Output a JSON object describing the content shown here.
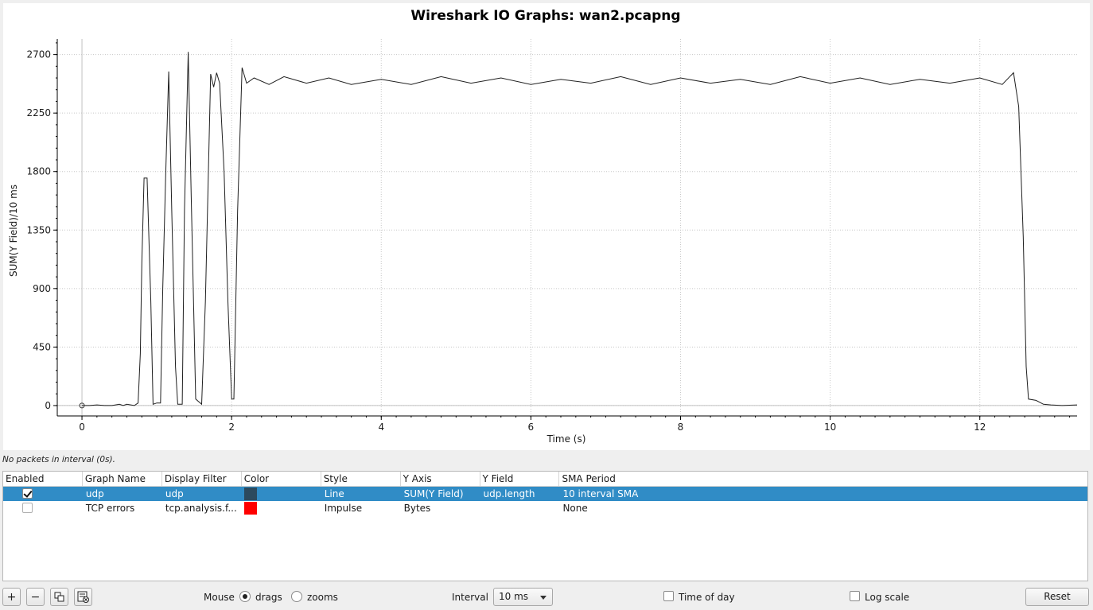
{
  "chart_data": {
    "type": "line",
    "title": "Wireshark IO Graphs: wan2.pcapng",
    "xlabel": "Time (s)",
    "ylabel": "SUM(Y Field)/10 ms",
    "xlim": [
      -0.33,
      13.3
    ],
    "ylim": [
      -80,
      2820
    ],
    "x_ticks": [
      0,
      2,
      4,
      6,
      8,
      10,
      12
    ],
    "y_ticks": [
      0,
      450,
      900,
      1350,
      1800,
      2250,
      2700
    ],
    "grid": true,
    "series": [
      {
        "name": "udp",
        "color": "#1f1f1f",
        "points": [
          [
            0.0,
            0
          ],
          [
            0.1,
            0
          ],
          [
            0.2,
            5
          ],
          [
            0.3,
            0
          ],
          [
            0.4,
            0
          ],
          [
            0.5,
            10
          ],
          [
            0.55,
            0
          ],
          [
            0.6,
            10
          ],
          [
            0.7,
            0
          ],
          [
            0.75,
            20
          ],
          [
            0.78,
            400
          ],
          [
            0.8,
            1100
          ],
          [
            0.83,
            1750
          ],
          [
            0.87,
            1750
          ],
          [
            0.92,
            800
          ],
          [
            0.95,
            10
          ],
          [
            1.0,
            20
          ],
          [
            1.05,
            20
          ],
          [
            1.08,
            900
          ],
          [
            1.12,
            1800
          ],
          [
            1.16,
            2570
          ],
          [
            1.2,
            1500
          ],
          [
            1.25,
            300
          ],
          [
            1.28,
            10
          ],
          [
            1.34,
            10
          ],
          [
            1.37,
            1500
          ],
          [
            1.42,
            2720
          ],
          [
            1.46,
            1600
          ],
          [
            1.52,
            50
          ],
          [
            1.6,
            10
          ],
          [
            1.65,
            800
          ],
          [
            1.72,
            2550
          ],
          [
            1.76,
            2450
          ],
          [
            1.8,
            2560
          ],
          [
            1.84,
            2480
          ],
          [
            1.9,
            1800
          ],
          [
            1.95,
            800
          ],
          [
            2.0,
            50
          ],
          [
            2.03,
            50
          ],
          [
            2.08,
            1500
          ],
          [
            2.14,
            2600
          ],
          [
            2.2,
            2480
          ],
          [
            2.3,
            2520
          ],
          [
            2.5,
            2470
          ],
          [
            2.7,
            2530
          ],
          [
            3.0,
            2480
          ],
          [
            3.3,
            2520
          ],
          [
            3.6,
            2470
          ],
          [
            4.0,
            2510
          ],
          [
            4.4,
            2470
          ],
          [
            4.8,
            2530
          ],
          [
            5.2,
            2480
          ],
          [
            5.6,
            2520
          ],
          [
            6.0,
            2470
          ],
          [
            6.4,
            2510
          ],
          [
            6.8,
            2480
          ],
          [
            7.2,
            2530
          ],
          [
            7.6,
            2470
          ],
          [
            8.0,
            2520
          ],
          [
            8.4,
            2480
          ],
          [
            8.8,
            2510
          ],
          [
            9.2,
            2470
          ],
          [
            9.6,
            2530
          ],
          [
            10.0,
            2480
          ],
          [
            10.4,
            2520
          ],
          [
            10.8,
            2470
          ],
          [
            11.2,
            2510
          ],
          [
            11.6,
            2480
          ],
          [
            12.0,
            2520
          ],
          [
            12.3,
            2470
          ],
          [
            12.45,
            2560
          ],
          [
            12.52,
            2300
          ],
          [
            12.58,
            1300
          ],
          [
            12.62,
            300
          ],
          [
            12.65,
            50
          ],
          [
            12.75,
            40
          ],
          [
            12.85,
            10
          ],
          [
            12.95,
            5
          ],
          [
            13.1,
            0
          ],
          [
            13.3,
            5
          ]
        ]
      }
    ]
  },
  "status": {
    "text": "No packets in interval (0s)."
  },
  "graph_table": {
    "headers": [
      "Enabled",
      "Graph Name",
      "Display Filter",
      "Color",
      "Style",
      "Y Axis",
      "Y Field",
      "SMA Period"
    ],
    "rows": [
      {
        "enabled": true,
        "name": "udp",
        "filter": "udp",
        "color": "#2c4a5e",
        "style": "Line",
        "y_axis": "SUM(Y Field)",
        "y_field": "udp.length",
        "sma": "10 interval SMA",
        "selected": true
      },
      {
        "enabled": false,
        "name": "TCP errors",
        "filter": "tcp.analysis.f...",
        "color": "#ff0000",
        "style": "Impulse",
        "y_axis": "Bytes",
        "y_field": "",
        "sma": "None",
        "selected": false
      }
    ]
  },
  "toolbar": {
    "add_label": "+",
    "remove_label": "−",
    "mouse_label": "Mouse",
    "drags_label": "drags",
    "zooms_label": "zooms",
    "mouse_mode": "drags",
    "interval_label": "Interval",
    "interval_value": "10 ms",
    "time_of_day_label": "Time of day",
    "log_scale_label": "Log scale",
    "reset_label": "Reset"
  }
}
